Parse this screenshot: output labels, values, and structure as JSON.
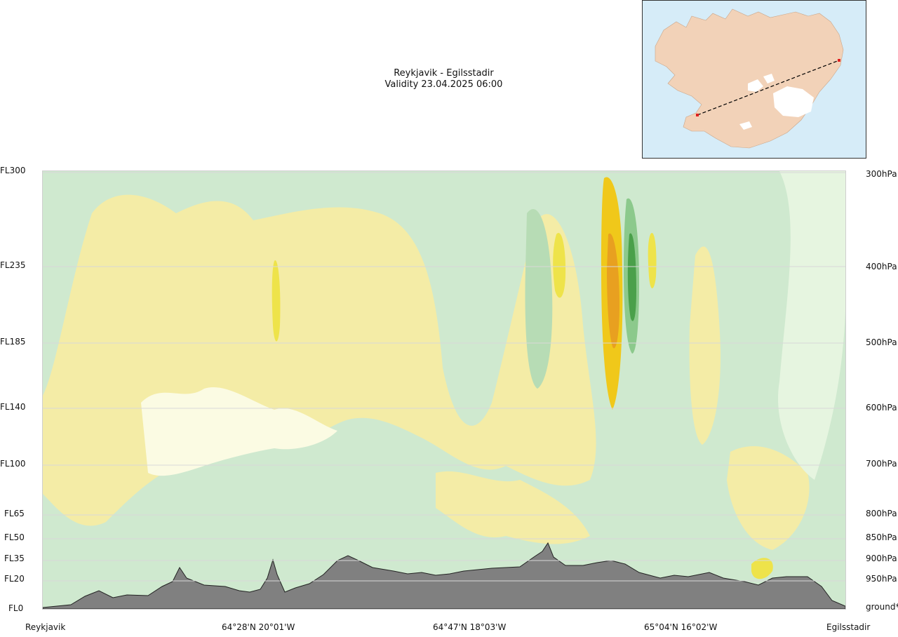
{
  "header": {
    "route_title": "Reykjavik - Egilsstadir",
    "validity": "Validity 23.04.2025 06:00"
  },
  "chart_data": {
    "type": "heatmap",
    "title": "Reykjavik - Egilsstadir",
    "subtitle": "Validity 23.04.2025 06:00",
    "left_axis_labels": [
      "FL300",
      "FL235",
      "FL185",
      "FL140",
      "FL100",
      "FL65",
      "FL50",
      "FL35",
      "FL20",
      "FL0"
    ],
    "right_axis_labels": [
      "300hPa",
      "400hPa",
      "500hPa",
      "600hPa",
      "700hPa",
      "800hPa",
      "850hPa",
      "900hPa",
      "950hPa",
      "ground*"
    ],
    "x_labels": [
      "Reykjavik",
      "64°28'N 20°01'W",
      "64°47'N 18°03'W",
      "65°04'N 16°02'W",
      "Egilsstadir"
    ],
    "grid": true,
    "colors": {
      "base": "#cfe9cf",
      "light_green": "#e6f5e0",
      "pale": "#fbfbe3",
      "yellow": "#f4eca6",
      "bright_yellow": "#eee34a",
      "gold": "#f0c81a",
      "orange": "#e8a020",
      "mid_green": "#b7dcb5",
      "green": "#8cc98c",
      "dark_green": "#4aa04a",
      "terrain": "#808080",
      "map_sea": "#d6ecf8",
      "map_land": "#f2d2b8",
      "map_ice": "#ffffff",
      "route_line": "#000000",
      "route_point": "#e02020"
    }
  }
}
